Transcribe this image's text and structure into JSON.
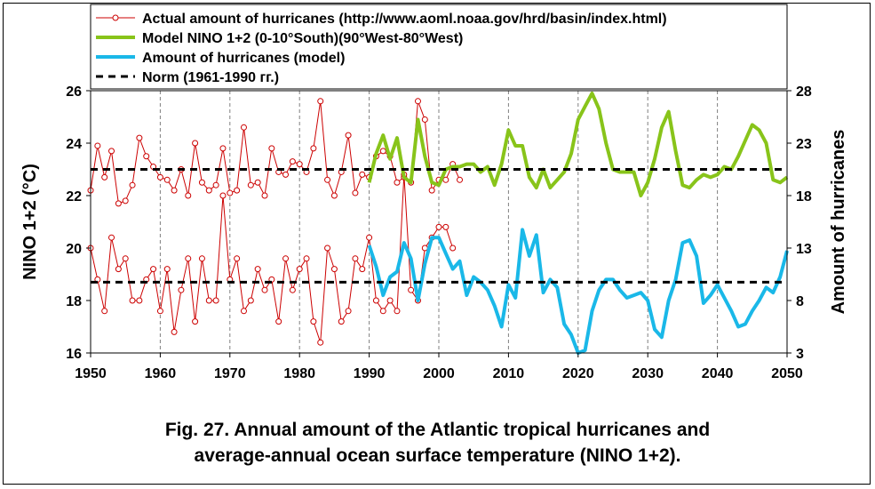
{
  "chart_data": {
    "type": "line",
    "x_axis": {
      "range": [
        1950,
        2050
      ],
      "ticks": [
        "1950",
        "1960",
        "1970",
        "1980",
        "1990",
        "2000",
        "2010",
        "2020",
        "2030",
        "2040",
        "2050"
      ]
    },
    "y_left": {
      "label": "NINO 1+2 (°C)",
      "range": [
        16,
        26
      ],
      "ticks": [
        "16",
        "18",
        "20",
        "22",
        "24",
        "26"
      ]
    },
    "y_right": {
      "label": "Amount of hurricanes",
      "range": [
        3,
        28
      ],
      "ticks": [
        "3",
        "8",
        "13",
        "18",
        "23",
        "28"
      ]
    },
    "grid": "vertical dashed at decades",
    "legend_position": "top",
    "series": [
      {
        "name": "Actual amount of hurricanes (http://www.aoml.noaa.gov/hrd/basin/index.html)",
        "axis": "left",
        "color": "#cc0000",
        "style": "line-with-circle-markers",
        "x": [
          1950,
          1951,
          1952,
          1953,
          1954,
          1955,
          1956,
          1957,
          1958,
          1959,
          1960,
          1961,
          1962,
          1963,
          1964,
          1965,
          1966,
          1967,
          1968,
          1969,
          1970,
          1971,
          1972,
          1973,
          1974,
          1975,
          1976,
          1977,
          1978,
          1979,
          1980,
          1981,
          1982,
          1983,
          1984,
          1985,
          1986,
          1987,
          1988,
          1989,
          1990,
          1991,
          1992,
          1993,
          1994,
          1995,
          1996,
          1997,
          1998,
          1999,
          2000,
          2001,
          2002,
          2003
        ],
        "y": [
          22.2,
          23.9,
          22.7,
          23.7,
          21.7,
          21.8,
          22.4,
          24.2,
          23.5,
          23.1,
          22.7,
          22.6,
          22.2,
          23.0,
          22.0,
          24.0,
          22.5,
          22.2,
          22.4,
          23.8,
          22.1,
          22.2,
          24.6,
          22.4,
          22.5,
          22.0,
          23.8,
          22.9,
          22.8,
          23.3,
          23.2,
          22.9,
          23.8,
          25.6,
          22.6,
          22.0,
          22.9,
          24.3,
          22.1,
          22.8,
          22.7,
          23.5,
          23.7,
          23.5,
          22.5,
          22.7,
          22.5,
          25.6,
          24.9,
          22.2,
          22.6,
          22.6,
          23.2,
          22.6
        ]
      },
      {
        "name": "Actual amount of hurricanes (http://www.aoml.noaa.gov/hrd/basin/index.html)",
        "axis": "left",
        "color": "#cc0000",
        "style": "line-with-circle-markers",
        "x": [
          1950,
          1951,
          1952,
          1953,
          1954,
          1955,
          1956,
          1957,
          1958,
          1959,
          1960,
          1961,
          1962,
          1963,
          1964,
          1965,
          1966,
          1967,
          1968,
          1969,
          1970,
          1971,
          1972,
          1973,
          1974,
          1975,
          1976,
          1977,
          1978,
          1979,
          1980,
          1981,
          1982,
          1983,
          1984,
          1985,
          1986,
          1987,
          1988,
          1989,
          1990,
          1991,
          1992,
          1993,
          1994,
          1995,
          1996,
          1997,
          1998,
          1999,
          2000,
          2001,
          2002
        ],
        "y": [
          20.0,
          18.8,
          17.6,
          20.4,
          19.2,
          19.6,
          18.0,
          18.0,
          18.8,
          19.2,
          17.6,
          19.2,
          16.8,
          18.4,
          19.6,
          17.2,
          19.6,
          18.0,
          18.0,
          22.0,
          18.8,
          19.6,
          17.6,
          18.0,
          19.2,
          18.4,
          18.8,
          17.2,
          19.6,
          18.4,
          19.2,
          19.6,
          17.2,
          16.4,
          20.0,
          19.2,
          17.2,
          17.6,
          19.6,
          19.2,
          20.4,
          18.0,
          17.6,
          18.0,
          17.6,
          22.8,
          18.4,
          18.0,
          20.0,
          20.4,
          20.8,
          20.8,
          20.0
        ]
      },
      {
        "name": "Model NINO 1+2 (0-10°South)(90°West-80°West)",
        "axis": "left",
        "color": "#88c41a",
        "style": "thick-line",
        "x": [
          1990,
          1991,
          1992,
          1993,
          1994,
          1995,
          1996,
          1997,
          1998,
          1999,
          2000,
          2001,
          2002,
          2003,
          2004,
          2005,
          2006,
          2007,
          2008,
          2009,
          2010,
          2011,
          2012,
          2013,
          2014,
          2015,
          2016,
          2017,
          2018,
          2019,
          2020,
          2021,
          2022,
          2023,
          2024,
          2025,
          2026,
          2027,
          2028,
          2029,
          2030,
          2031,
          2032,
          2033,
          2034,
          2035,
          2036,
          2037,
          2038,
          2039,
          2040,
          2041,
          2042,
          2043,
          2044,
          2045,
          2046,
          2047,
          2048,
          2049,
          2050
        ],
        "y": [
          22.5,
          23.6,
          24.3,
          23.4,
          24.2,
          22.7,
          22.5,
          24.9,
          23.5,
          22.5,
          22.4,
          23.0,
          23.1,
          23.1,
          23.2,
          23.2,
          22.9,
          23.1,
          22.4,
          23.2,
          24.5,
          23.9,
          23.9,
          22.7,
          22.3,
          23.0,
          22.3,
          22.6,
          22.9,
          23.6,
          24.9,
          25.4,
          25.9,
          25.3,
          24.0,
          23.0,
          22.9,
          22.9,
          22.9,
          22.0,
          22.5,
          23.4,
          24.6,
          25.2,
          23.7,
          22.4,
          22.3,
          22.6,
          22.8,
          22.7,
          22.8,
          23.1,
          23.0,
          23.5,
          24.1,
          24.7,
          24.5,
          24.0,
          22.6,
          22.5,
          22.7
        ]
      },
      {
        "name": "Amount of hurricanes (model)",
        "axis": "left",
        "color": "#1ab8e8",
        "style": "thick-line",
        "x": [
          1990,
          1991,
          1992,
          1993,
          1994,
          1995,
          1996,
          1997,
          1998,
          1999,
          2000,
          2001,
          2002,
          2003,
          2004,
          2005,
          2006,
          2007,
          2008,
          2009,
          2010,
          2011,
          2012,
          2013,
          2014,
          2015,
          2016,
          2017,
          2018,
          2019,
          2020,
          2021,
          2022,
          2023,
          2024,
          2025,
          2026,
          2027,
          2028,
          2029,
          2030,
          2031,
          2032,
          2033,
          2034,
          2035,
          2036,
          2037,
          2038,
          2039,
          2040,
          2041,
          2042,
          2043,
          2044,
          2045,
          2046,
          2047,
          2048,
          2049,
          2050
        ],
        "y": [
          20.1,
          19.3,
          18.2,
          18.9,
          19.1,
          20.2,
          19.6,
          18.0,
          19.4,
          20.4,
          20.4,
          19.8,
          19.2,
          19.5,
          18.2,
          18.9,
          18.7,
          18.4,
          17.8,
          17.0,
          18.6,
          18.1,
          20.7,
          19.7,
          20.5,
          18.3,
          18.8,
          18.5,
          17.1,
          16.7,
          16.0,
          16.1,
          17.6,
          18.4,
          18.8,
          18.8,
          18.4,
          18.1,
          18.2,
          18.3,
          18.0,
          16.9,
          16.6,
          18.0,
          18.8,
          20.2,
          20.3,
          19.7,
          17.9,
          18.2,
          18.6,
          18.1,
          17.6,
          17.0,
          17.1,
          17.6,
          18.0,
          18.5,
          18.3,
          18.9,
          19.9
        ]
      },
      {
        "name": "Norm (1961-1990 гг.)",
        "axis": "left",
        "color": "#000000",
        "style": "dashed",
        "x": [
          1950,
          2050
        ],
        "y": [
          23.0,
          23.0
        ]
      },
      {
        "name": "Norm (1961-1990 гг.)",
        "axis": "left",
        "color": "#000000",
        "style": "dashed",
        "x": [
          1950,
          2050
        ],
        "y": [
          18.7,
          18.7
        ]
      }
    ],
    "legend": [
      {
        "label": "Actual amount of hurricanes (http://www.aoml.noaa.gov/hrd/basin/index.html)",
        "color": "#cc0000",
        "style": "marker-line"
      },
      {
        "label": "Model NINO 1+2 (0-10°South)(90°West-80°West)",
        "color": "#88c41a",
        "style": "thick-line"
      },
      {
        "label": "Amount of hurricanes (model)",
        "color": "#1ab8e8",
        "style": "thick-line"
      },
      {
        "label": "Norm (1961-1990 гг.)",
        "color": "#000000",
        "style": "dashed"
      }
    ]
  },
  "caption": {
    "line1": "Fig. 27. Annual amount of the Atlantic tropical hurricanes and",
    "line2": "average-annual ocean surface temperature (NINO 1+2)."
  }
}
